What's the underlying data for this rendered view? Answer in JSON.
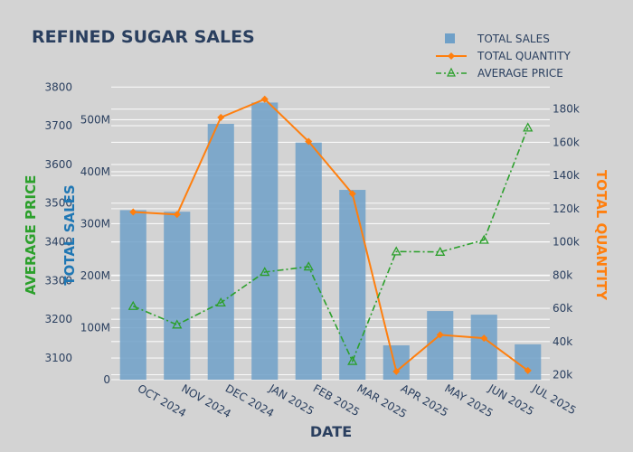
{
  "chart_data": {
    "type": "bar",
    "title": "REFINED SUGAR SALES",
    "xlabel": "DATE",
    "categories": [
      "OCT 2024",
      "NOV 2024",
      "DEC 2024",
      "JAN 2025",
      "FEB 2025",
      "MAR 2025",
      "APR 2025",
      "MAY 2025",
      "JUN 2025",
      "JUL 2025"
    ],
    "series": [
      {
        "name": "TOTAL SALES",
        "type": "bar",
        "axis": "TOTAL SALES",
        "color": "#6fa0c8",
        "values": [
          326000000,
          323000000,
          492000000,
          533000000,
          456000000,
          365000000,
          66000000,
          132000000,
          125000000,
          68000000
        ]
      },
      {
        "name": "TOTAL QUANTITY",
        "type": "line",
        "axis": "TOTAL QUANTITY",
        "color": "#ff7f0e",
        "values": [
          118000,
          116500,
          175000,
          186000,
          160500,
          129000,
          22000,
          44000,
          42000,
          22500
        ]
      },
      {
        "name": "AVERAGE PRICE",
        "type": "line-dashdot",
        "axis": "AVERAGE PRICE",
        "color": "#2ca02c",
        "values": [
          3234,
          3186,
          3243,
          3322,
          3336,
          3092,
          3375,
          3374,
          3405,
          3695
        ]
      }
    ],
    "axes": {
      "sales": {
        "label": "TOTAL SALES",
        "range": [
          0,
          565000000
        ],
        "ticks": [
          0,
          100000000,
          200000000,
          300000000,
          400000000,
          500000000
        ],
        "ticklabels": [
          "0",
          "100M",
          "200M",
          "300M",
          "400M",
          "500M"
        ]
      },
      "price": {
        "label": "AVERAGE PRICE",
        "range": [
          3044,
          3803
        ],
        "ticks": [
          3100,
          3200,
          3300,
          3400,
          3500,
          3600,
          3700,
          3800
        ],
        "ticklabels": [
          "3100",
          "3200",
          "3300",
          "3400",
          "3500",
          "3600",
          "3700",
          "3800"
        ]
      },
      "quantity": {
        "label": "TOTAL QUANTITY",
        "range": [
          17000,
          194000
        ],
        "ticks": [
          20000,
          40000,
          60000,
          80000,
          100000,
          120000,
          140000,
          160000,
          180000
        ],
        "ticklabels": [
          "20k",
          "40k",
          "60k",
          "80k",
          "100k",
          "120k",
          "140k",
          "160k",
          "180k"
        ]
      }
    },
    "grid": true,
    "legend_position": "top-right"
  },
  "colors": {
    "background": "#d3d3d3",
    "text": "#2a3f5f",
    "price_axis": "#2ca02c",
    "quantity_axis": "#ff7f0e",
    "sales_axis": "#1f77b4"
  }
}
